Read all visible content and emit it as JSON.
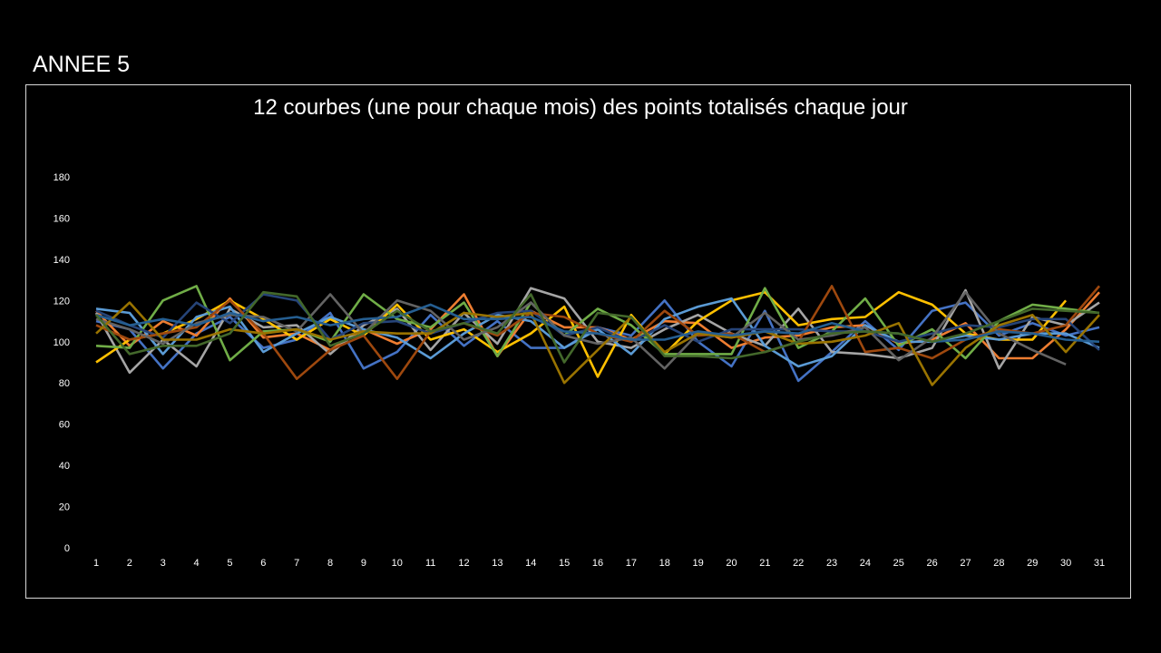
{
  "page": {
    "heading": "ANNEE 5"
  },
  "chart_data": {
    "type": "line",
    "title": "12 courbes (une pour chaque mois) des points totalisés chaque jour",
    "xlabel": "",
    "ylabel": "",
    "ylim": [
      0,
      180
    ],
    "yticks": [
      0,
      20,
      40,
      60,
      80,
      100,
      120,
      140,
      160,
      180
    ],
    "x": [
      1,
      2,
      3,
      4,
      5,
      6,
      7,
      8,
      9,
      10,
      11,
      12,
      13,
      14,
      15,
      16,
      17,
      18,
      19,
      20,
      21,
      22,
      23,
      24,
      25,
      26,
      27,
      28,
      29,
      30,
      31
    ],
    "grid": false,
    "legend": "none",
    "series": [
      {
        "color": "#4472c4",
        "values": [
          110,
          106,
          87,
          104,
          112,
          97,
          101,
          114,
          87,
          95,
          113,
          98,
          110,
          97,
          97,
          107,
          103,
          120,
          100,
          88,
          115,
          81,
          95,
          110,
          96,
          115,
          119,
          103,
          109,
          103,
          107
        ]
      },
      {
        "color": "#ed7d31",
        "values": [
          115,
          98,
          110,
          103,
          121,
          102,
          104,
          96,
          106,
          99,
          106,
          123,
          93,
          115,
          107,
          107,
          101,
          110,
          109,
          97,
          102,
          103,
          107,
          108,
          99,
          101,
          109,
          92,
          92,
          106,
          124
        ]
      },
      {
        "color": "#a5a5a5",
        "values": [
          114,
          85,
          101,
          88,
          116,
          107,
          108,
          94,
          108,
          116,
          96,
          114,
          99,
          126,
          121,
          100,
          97,
          106,
          113,
          104,
          98,
          116,
          95,
          94,
          92,
          97,
          125,
          87,
          112,
          108,
          119
        ]
      },
      {
        "color": "#ffc000",
        "values": [
          90,
          101,
          104,
          111,
          120,
          111,
          101,
          111,
          103,
          118,
          101,
          106,
          95,
          104,
          117,
          83,
          113,
          94,
          110,
          120,
          124,
          108,
          111,
          112,
          124,
          118,
          104,
          101,
          101,
          120,
          null
        ]
      },
      {
        "color": "#5b9bd5",
        "values": [
          116,
          114,
          94,
          112,
          117,
          95,
          104,
          112,
          106,
          102,
          92,
          104,
          113,
          110,
          97,
          106,
          94,
          111,
          117,
          121,
          98,
          88,
          93,
          108,
          100,
          100,
          103,
          101,
          104,
          104,
          97
        ]
      },
      {
        "color": "#70ad47",
        "values": [
          98,
          97,
          120,
          127,
          91,
          105,
          106,
          100,
          123,
          111,
          107,
          119,
          93,
          119,
          103,
          116,
          108,
          94,
          94,
          94,
          126,
          97,
          105,
          121,
          98,
          106,
          92,
          110,
          118,
          116,
          114
        ]
      },
      {
        "color": "#264478",
        "values": [
          115,
          108,
          102,
          119,
          109,
          123,
          120,
          101,
          109,
          110,
          104,
          109,
          114,
          115,
          103,
          107,
          100,
          108,
          100,
          106,
          106,
          106,
          105,
          105,
          100,
          104,
          108,
          107,
          111,
          111,
          96
        ]
      },
      {
        "color": "#9e480e",
        "values": [
          108,
          101,
          104,
          107,
          120,
          104,
          82,
          96,
          103,
          82,
          105,
          109,
          103,
          114,
          112,
          104,
          100,
          115,
          103,
          104,
          95,
          100,
          127,
          95,
          97,
          92,
          101,
          106,
          104,
          108,
          127
        ]
      },
      {
        "color": "#636363",
        "values": [
          111,
          106,
          99,
          109,
          113,
          112,
          105,
          123,
          104,
          120,
          115,
          101,
          107,
          119,
          103,
          99,
          102,
          87,
          104,
          102,
          114,
          101,
          103,
          107,
          91,
          102,
          124,
          104,
          96,
          89,
          null
        ]
      },
      {
        "color": "#997300",
        "values": [
          104,
          119,
          101,
          101,
          106,
          104,
          106,
          101,
          105,
          104,
          104,
          114,
          112,
          114,
          80,
          96,
          112,
          95,
          104,
          102,
          105,
          99,
          100,
          103,
          109,
          79,
          97,
          108,
          113,
          95,
          113
        ]
      },
      {
        "color": "#255e91",
        "values": [
          113,
          108,
          111,
          108,
          114,
          110,
          112,
          108,
          111,
          112,
          118,
          111,
          111,
          112,
          105,
          104,
          101,
          101,
          105,
          103,
          105,
          104,
          109,
          105,
          104,
          100,
          101,
          105,
          104,
          101,
          100
        ]
      },
      {
        "color": "#43682b",
        "values": [
          113,
          94,
          98,
          98,
          104,
          124,
          122,
          98,
          104,
          115,
          105,
          109,
          104,
          123,
          90,
          114,
          112,
          93,
          93,
          92,
          95,
          100,
          104,
          105,
          104,
          100,
          104,
          110,
          116,
          115,
          114
        ]
      }
    ]
  }
}
